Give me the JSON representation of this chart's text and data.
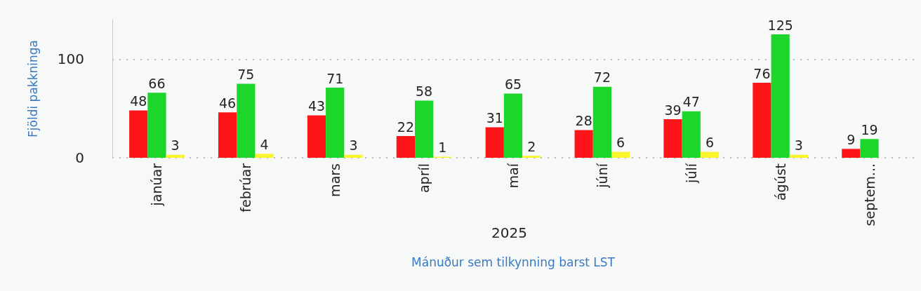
{
  "chart_data": {
    "type": "bar",
    "xlabel": "Mánuður sem tilkynning barst LST",
    "ylabel": "Fjöldi pakkninga",
    "categories": [
      "janúar",
      "febrúar",
      "mars",
      "apríl",
      "maí",
      "júní",
      "júlí",
      "ágúst",
      "septem..."
    ],
    "series": [
      {
        "color": "#fd1519",
        "values": [
          48,
          46,
          43,
          22,
          31,
          28,
          39,
          76,
          9
        ]
      },
      {
        "color": "#1dd62a",
        "values": [
          66,
          75,
          71,
          58,
          65,
          72,
          47,
          125,
          19
        ]
      },
      {
        "color": "#fcf42a",
        "values": [
          3,
          4,
          3,
          1,
          2,
          6,
          6,
          3,
          null
        ]
      }
    ],
    "ylim": [
      0,
      140
    ],
    "yticks": [
      0,
      100
    ],
    "grid": "y",
    "data_labels": true,
    "annotations": [
      "2025"
    ]
  }
}
